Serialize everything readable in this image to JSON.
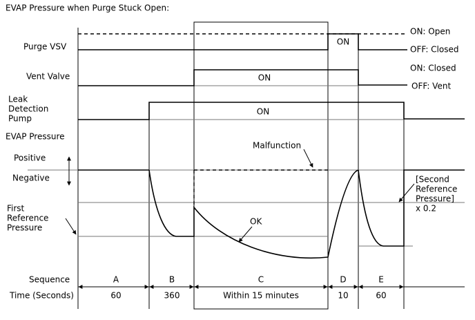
{
  "title": "EVAP Pressure when Purge Stuck Open:",
  "signals": {
    "purge_vsv": {
      "label": "Purge VSV",
      "on_state": "ON: Open",
      "off_state": "OFF: Closed",
      "on_text": "ON"
    },
    "vent_valve": {
      "label": "Vent Valve",
      "on_state": "ON: Closed",
      "off_state": "OFF: Vent",
      "on_text": "ON"
    },
    "leak_detection_pump": {
      "label": [
        "Leak",
        "Detection",
        "Pump"
      ],
      "on_text": "ON"
    }
  },
  "pressure": {
    "label": "EVAP Pressure",
    "positive": "Positive",
    "negative": "Negative",
    "first_reference": [
      "First",
      "Reference",
      "Pressure"
    ],
    "second_reference": [
      "[Second",
      "Reference",
      "Pressure]",
      "x 0.2"
    ],
    "malfunction": "Malfunction",
    "ok": "OK"
  },
  "sequence": {
    "label": "Sequence",
    "steps": [
      "A",
      "B",
      "C",
      "D",
      "E"
    ]
  },
  "time": {
    "label": "Time (Seconds)",
    "values": [
      "60",
      "360",
      "Within 15 minutes",
      "10",
      "60"
    ]
  }
}
